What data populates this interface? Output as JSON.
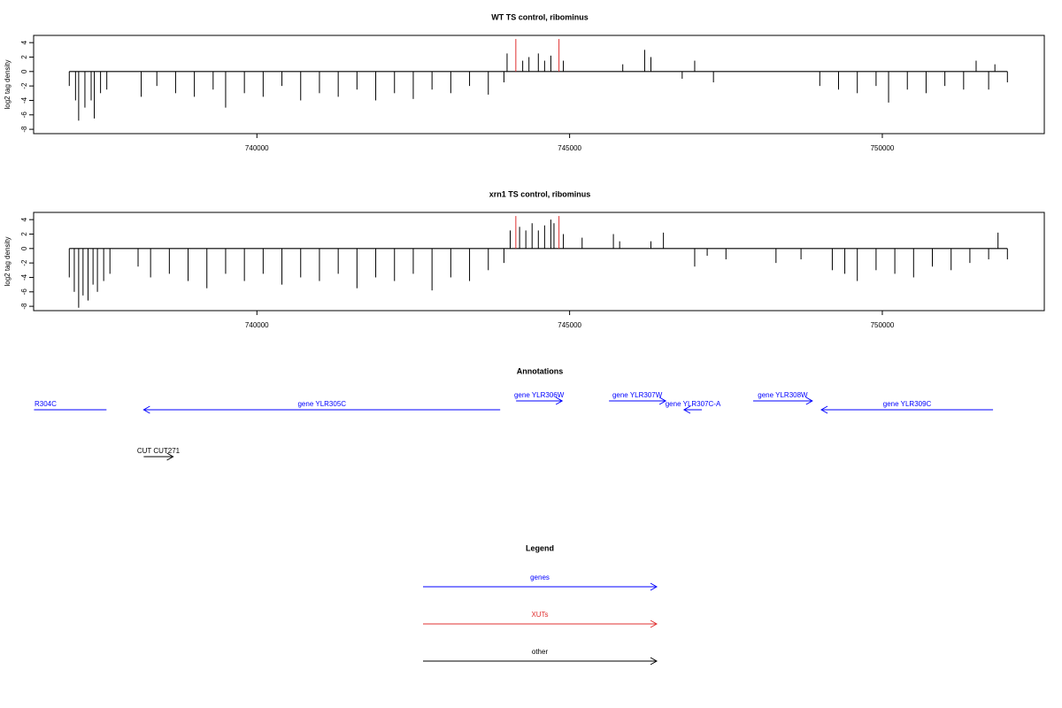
{
  "chart_data": [
    {
      "type": "bar",
      "title": "WT TS control, ribominus",
      "ylabel": "log2 tag density",
      "xlim": [
        736430,
        752590
      ],
      "xticks": [
        740000,
        745000,
        750000
      ],
      "ylim": [
        -8.6,
        5
      ],
      "yticks": [
        4,
        2,
        0,
        -2,
        -4,
        -6,
        -8
      ],
      "series": [
        {
          "color": "#000000",
          "x": [
            737000,
            737100,
            737150,
            737250,
            737350,
            737400,
            737500,
            737600,
            738150,
            738400,
            738700,
            739000,
            739300,
            739500,
            739800,
            740100,
            740400,
            740700,
            741000,
            741300,
            741600,
            741900,
            742200,
            742500,
            742800,
            743100,
            743400,
            743700,
            743950,
            744000,
            744250,
            744350,
            744500,
            744600,
            744700,
            744900,
            745850,
            746200,
            746300,
            746800,
            747000,
            747300,
            749000,
            749300,
            749600,
            749900,
            750100,
            750400,
            750700,
            751000,
            751300,
            751500,
            751700,
            751800,
            752000
          ],
          "values": [
            -2,
            -4,
            -6.8,
            -5,
            -4,
            -6.5,
            -3,
            -2.5,
            -3.5,
            -2,
            -3,
            -3.5,
            -2.5,
            -5,
            -3,
            -3.5,
            -2,
            -4,
            -3,
            -3.5,
            -2.5,
            -4,
            -3,
            -3.8,
            -2.5,
            -3,
            -2,
            -3.2,
            -1.5,
            2.5,
            1.5,
            2,
            2.5,
            1.5,
            2.2,
            1.5,
            1,
            3,
            2,
            -1,
            1.5,
            -1.5,
            -2,
            -2.5,
            -3,
            -2,
            -4.3,
            -2.5,
            -3,
            -2,
            -2.5,
            1.5,
            -2.5,
            1,
            -1.5
          ]
        },
        {
          "color": "#e03030",
          "x": [
            744140,
            744830
          ],
          "values": [
            4.5,
            4.5
          ]
        }
      ]
    },
    {
      "type": "bar",
      "title": "xrn1 TS control, ribominus",
      "ylabel": "log2 tag density",
      "xlim": [
        736430,
        752590
      ],
      "xticks": [
        740000,
        745000,
        750000
      ],
      "ylim": [
        -8.6,
        5
      ],
      "yticks": [
        4,
        2,
        0,
        -2,
        -4,
        -6,
        -8
      ],
      "series": [
        {
          "color": "#000000",
          "x": [
            737000,
            737080,
            737150,
            737220,
            737300,
            737380,
            737450,
            737550,
            737650,
            738100,
            738300,
            738600,
            738900,
            739200,
            739500,
            739800,
            740100,
            740400,
            740700,
            741000,
            741300,
            741600,
            741900,
            742200,
            742500,
            742800,
            743100,
            743400,
            743700,
            743950,
            744050,
            744200,
            744300,
            744400,
            744500,
            744600,
            744700,
            744750,
            744900,
            745200,
            745700,
            745800,
            746300,
            746500,
            747000,
            747200,
            747500,
            748300,
            748700,
            749200,
            749400,
            749600,
            749900,
            750200,
            750500,
            750800,
            751100,
            751400,
            751700,
            751850,
            752000
          ],
          "values": [
            -4,
            -6,
            -8.2,
            -6.5,
            -7.2,
            -5,
            -6,
            -4.5,
            -3.5,
            -2.5,
            -4,
            -3.5,
            -4.5,
            -5.5,
            -3.5,
            -4.5,
            -3.5,
            -5,
            -4,
            -4.5,
            -3.5,
            -5.5,
            -4,
            -4.5,
            -3.5,
            -5.8,
            -4,
            -4.5,
            -3,
            -2,
            2.5,
            3,
            2.5,
            3.5,
            2.5,
            3.2,
            4,
            3.5,
            2,
            1.5,
            2,
            1,
            1,
            2.2,
            -2.5,
            -1,
            -1.5,
            -2,
            -1.5,
            -3,
            -3.5,
            -4.5,
            -3,
            -3.5,
            -4,
            -2.5,
            -3,
            -2,
            -1.5,
            2.2,
            -1.5
          ]
        },
        {
          "color": "#e03030",
          "x": [
            744140,
            744830
          ],
          "values": [
            4.5,
            4.5
          ]
        }
      ]
    }
  ],
  "annotations": {
    "title": "Annotations",
    "features": [
      {
        "label": "R304C",
        "start": 736436,
        "end": 737595,
        "strand": "-",
        "color": "#0000ff"
      },
      {
        "label": "gene YLR305C",
        "start": 738190,
        "end": 743890,
        "strand": "-",
        "color": "#0000ff"
      },
      {
        "label": "gene YLR306W",
        "start": 744144,
        "end": 744880,
        "strand": "+",
        "color": "#0000ff"
      },
      {
        "label": "gene YLR307W",
        "start": 745630,
        "end": 746535,
        "strand": "+",
        "color": "#0000ff"
      },
      {
        "label": "gene YLR307C-A",
        "start": 746830,
        "end": 747115,
        "strand": "-",
        "color": "#0000ff"
      },
      {
        "label": "gene YLR308W",
        "start": 747935,
        "end": 748880,
        "strand": "+",
        "color": "#0000ff"
      },
      {
        "label": "gene YLR309C",
        "start": 749025,
        "end": 751770,
        "strand": "-",
        "color": "#0000ff"
      },
      {
        "label": "CUT CUT271",
        "start": 738190,
        "end": 738660,
        "strand": "+",
        "color": "#000000"
      }
    ]
  },
  "legend": {
    "title": "Legend",
    "items": [
      {
        "label": "genes",
        "color": "#0000ff"
      },
      {
        "label": "XUTs",
        "color": "#e03030"
      },
      {
        "label": "other",
        "color": "#000000"
      }
    ]
  }
}
